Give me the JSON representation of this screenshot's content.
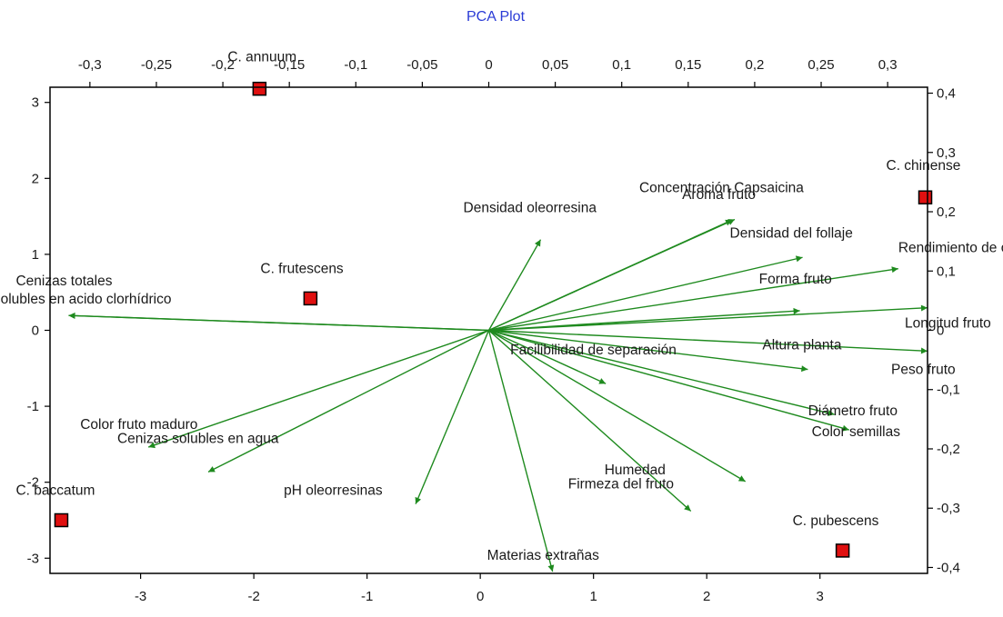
{
  "chart_data": {
    "type": "scatter",
    "title": "PCA Plot",
    "colors": {
      "arrow": "#1e8a1e",
      "marker_fill": "#e01010",
      "marker_stroke": "#000000",
      "title": "#2a3bd6",
      "frame": "#000000"
    },
    "axes": {
      "bottom": {
        "range": [
          -3.8,
          3.95
        ],
        "ticks": [
          -3,
          -2,
          -1,
          0,
          1,
          2,
          3
        ],
        "tick_labels": [
          "-3",
          "-2",
          "-1",
          "0",
          "1",
          "2",
          "3"
        ]
      },
      "left": {
        "range": [
          -3.2,
          3.2
        ],
        "ticks": [
          3,
          2,
          1,
          0,
          -1,
          -2,
          -3
        ],
        "tick_labels": [
          "3",
          "2",
          "1",
          "0",
          "-1",
          "-2",
          "-3"
        ]
      },
      "top": {
        "range": [
          -0.33,
          0.33
        ],
        "ticks": [
          -0.3,
          -0.25,
          -0.2,
          -0.15,
          -0.1,
          -0.05,
          0,
          0.05,
          0.1,
          0.15,
          0.2,
          0.25,
          0.3
        ],
        "tick_labels": [
          "-0,3",
          "-0,25",
          "-0,2",
          "-0,15",
          "-0,1",
          "-0,05",
          "0",
          "0,05",
          "0,1",
          "0,15",
          "0,2",
          "0,25",
          "0,3"
        ]
      },
      "right": {
        "range": [
          -0.41,
          0.41
        ],
        "ticks": [
          0.4,
          0.3,
          0.2,
          0.1,
          0,
          -0.1,
          -0.2,
          -0.3,
          -0.4
        ],
        "tick_labels": [
          "0,4",
          "0,3",
          "0,2",
          "0,1",
          "0",
          "-0,1",
          "-0,2",
          "-0,3",
          "-0,4"
        ]
      }
    },
    "observations": [
      {
        "name": "C. annuum",
        "x": -1.95,
        "y": 3.18
      },
      {
        "name": "C. chinense",
        "x": 3.93,
        "y": 1.75
      },
      {
        "name": "C. frutescens",
        "x": -1.5,
        "y": 0.42
      },
      {
        "name": "C. baccatum",
        "x": -3.7,
        "y": -2.5
      },
      {
        "name": "C. pubescens",
        "x": 3.2,
        "y": -2.9
      }
    ],
    "variables": [
      {
        "name": "Concentración Capsaicina",
        "x": 0.185,
        "y": 0.187
      },
      {
        "name": "Aroma fruto",
        "x": 0.183,
        "y": 0.186
      },
      {
        "name": "Densidad oleorresina",
        "x": 0.039,
        "y": 0.153
      },
      {
        "name": "Densidad del follaje",
        "x": 0.236,
        "y": 0.123
      },
      {
        "name": "Rendimiento de oleorresina",
        "x": 0.308,
        "y": 0.104
      },
      {
        "name": "Longitud fruto",
        "x": 0.33,
        "y": 0.038
      },
      {
        "name": "Forma fruto",
        "x": 0.234,
        "y": 0.033
      },
      {
        "name": "Peso fruto",
        "x": 0.33,
        "y": -0.035
      },
      {
        "name": "Altura planta",
        "x": 0.24,
        "y": -0.066
      },
      {
        "name": "Facilibilidad de separación",
        "x": 0.088,
        "y": -0.09
      },
      {
        "name": "Color semillas",
        "x": 0.26,
        "y": -0.142
      },
      {
        "name": "Diámetro fruto",
        "x": 0.271,
        "y": -0.168
      },
      {
        "name": "Humedad",
        "x": 0.193,
        "y": -0.255
      },
      {
        "name": "Firmeza del fruto",
        "x": 0.152,
        "y": -0.305
      },
      {
        "name": "Materias extrañas",
        "x": 0.048,
        "y": -0.407
      },
      {
        "name": "pH oleorresinas",
        "x": -0.055,
        "y": -0.293
      },
      {
        "name": "Cenizas solubles en agua",
        "x": -0.211,
        "y": -0.239
      },
      {
        "name": "Color fruto maduro",
        "x": -0.256,
        "y": -0.197
      },
      {
        "name": "Cenizas insolubles en acido clorhídrico",
        "x": -0.316,
        "y": 0.025
      },
      {
        "name": "Cenizas totales",
        "x": -0.316,
        "y": 0.025
      }
    ]
  }
}
